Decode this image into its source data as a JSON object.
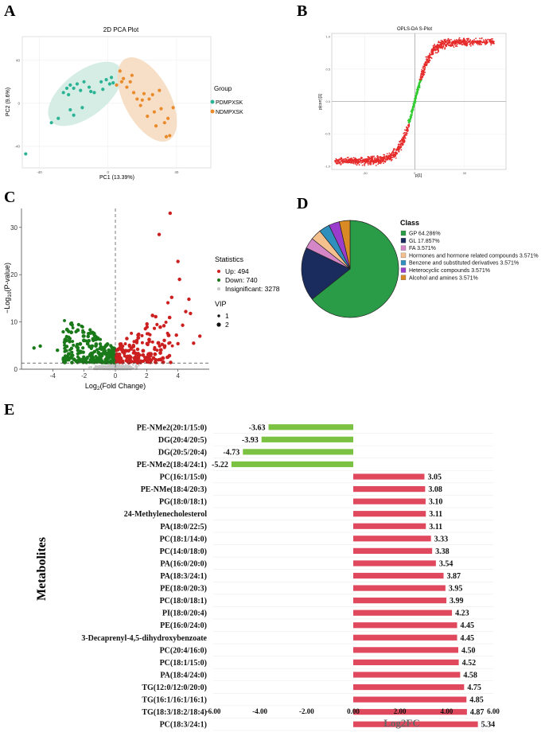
{
  "panel_letters": [
    "A",
    "B",
    "C",
    "D",
    "E"
  ],
  "colors": {
    "pdm": "#2ab394",
    "ndm": "#e98a2b",
    "pdm_ellipse": "#cfeae1",
    "ndm_ellipse": "#f6d9bd",
    "oplsRed": "#e62a2a",
    "oplsGreen": "#33cc33",
    "up": "#cc1f1f",
    "down": "#1a7a1a",
    "insig": "#c8c8c8",
    "barPos": "#e0485d",
    "barNeg": "#7cc242",
    "pie": [
      "#2a9c47",
      "#1a2b5e",
      "#d586c7",
      "#f4c08e",
      "#2f8fbd",
      "#9b3dcc",
      "#d98a25"
    ]
  },
  "chart_data": [
    {
      "id": "A",
      "type": "scatter",
      "title": "2D PCA Plot",
      "xlabel": "PC1 (13.39%)",
      "ylabel": "PC2 (9.6%)",
      "xlim": [
        -50,
        60
      ],
      "ylim": [
        -60,
        62
      ],
      "xticks": [
        -40,
        0,
        40
      ],
      "yticks": [
        -40,
        0,
        40
      ],
      "legend_title": "Group",
      "series": [
        {
          "name": "PDMPXSK",
          "color": "#2ab394",
          "points": [
            [
              -48,
              -47
            ],
            [
              -33,
              -18
            ],
            [
              -29,
              -14
            ],
            [
              -22,
              -6
            ],
            [
              -20,
              -11
            ],
            [
              -15,
              -4
            ],
            [
              -23,
              8
            ],
            [
              -26,
              10
            ],
            [
              -24,
              14
            ],
            [
              -22,
              17
            ],
            [
              -20,
              14
            ],
            [
              -18,
              18
            ],
            [
              -16,
              12
            ],
            [
              -14,
              20
            ],
            [
              -11,
              15
            ],
            [
              -10,
              11
            ],
            [
              -8,
              10
            ],
            [
              -4,
              20
            ],
            [
              -3,
              13
            ],
            [
              -1,
              22
            ],
            [
              1,
              18
            ],
            [
              2,
              24
            ],
            [
              3,
              19
            ]
          ]
        },
        {
          "name": "NDMPXSK",
          "color": "#e98a2b",
          "points": [
            [
              5,
              17
            ],
            [
              7,
              30
            ],
            [
              8,
              20
            ],
            [
              9,
              23
            ],
            [
              11,
              15
            ],
            [
              13,
              20
            ],
            [
              14,
              26
            ],
            [
              15,
              10
            ],
            [
              17,
              4
            ],
            [
              19,
              -2
            ],
            [
              20,
              3
            ],
            [
              21,
              9
            ],
            [
              23,
              -12
            ],
            [
              24,
              4
            ],
            [
              26,
              8
            ],
            [
              27,
              -8
            ],
            [
              28,
              -21
            ],
            [
              30,
              12
            ],
            [
              31,
              -5
            ],
            [
              33,
              -18
            ],
            [
              34,
              -31
            ],
            [
              36,
              -30
            ],
            [
              35,
              -14
            ],
            [
              38,
              -4
            ]
          ]
        }
      ]
    },
    {
      "id": "B",
      "type": "scatter",
      "title": "OPLS-DA S-Plot",
      "xlabel": "p[1]",
      "ylabel": "p(corr)[1]",
      "xlim": [
        -50,
        55
      ],
      "ylim": [
        -1.05,
        1.05
      ],
      "xticks": [
        -30,
        0,
        30
      ],
      "yticks": [
        -1.0,
        -0.5,
        0.0,
        0.5,
        1.0
      ]
    },
    {
      "id": "C",
      "type": "scatter",
      "title": "",
      "xlabel_prefix": "Log",
      "xlabel_sub": "2",
      "xlabel_suffix": "(Fold Change)",
      "ylabel_prefix": "−Log",
      "ylabel_sub": "10",
      "ylabel_suffix": "(P-value)",
      "xlim": [
        -6,
        6
      ],
      "ylim": [
        0,
        34
      ],
      "xticks": [
        -4,
        -2,
        0,
        2,
        4
      ],
      "yticks": [
        0,
        10,
        20,
        30
      ],
      "threshold_y": 1.3,
      "legend_title": "Statistics",
      "series": [
        {
          "name": "Up: 494",
          "color": "#cc1f1f",
          "count": 494
        },
        {
          "name": "Down: 740",
          "color": "#1a7a1a",
          "count": 740
        },
        {
          "name": "Insignificant: 3278",
          "color": "#c8c8c8",
          "count": 3278
        }
      ],
      "size_legend_title": "VIP",
      "size_legend": [
        "1",
        "2"
      ]
    },
    {
      "id": "D",
      "type": "pie",
      "legend_title": "Class",
      "slices": [
        {
          "label": "GP 64.286%",
          "value": 64.286
        },
        {
          "label": "GL 17.857%",
          "value": 17.857
        },
        {
          "label": "FA 3.571%",
          "value": 3.571
        },
        {
          "label": "Hormones and hormone related compounds 3.571%",
          "value": 3.571
        },
        {
          "label": "Benzene and substituted derivatives 3.571%",
          "value": 3.571
        },
        {
          "label": "Heterocyclic compounds 3.571%",
          "value": 3.571
        },
        {
          "label": "Alcohol and amines 3.571%",
          "value": 3.571
        }
      ]
    },
    {
      "id": "E",
      "type": "bar",
      "orientation": "horizontal",
      "xlabel": "Log2FC",
      "ylabel": "Metabolites",
      "xlim": [
        -6,
        6
      ],
      "xticks": [
        "-6.00",
        "-4.00",
        "-2.00",
        "0.00",
        "2.00",
        "4.00",
        "6.00"
      ],
      "categories": [
        "PE-NMe2(20:1/15:0)",
        "DG(20:4/20:5)",
        "DG(20:5/20:4)",
        "PE-NMe2(18:4/24:1)",
        "PC(16:1/15:0)",
        "PE-NMe(18:4/20:3)",
        "PG(18:0/18:1)",
        "24-Methylenecholesterol",
        "PA(18:0/22:5)",
        "PC(18:1/14:0)",
        "PC(14:0/18:0)",
        "PA(16:0/20:0)",
        "PA(18:3/24:1)",
        "PE(18:0/20:3)",
        "PC(18:0/18:1)",
        "PI(18:0/20:4)",
        "PE(16:0/24:0)",
        "3-Decaprenyl-4,5-dihydroxybenzoate",
        "PC(20:4/16:0)",
        "PC(18:1/15:0)",
        "PA(18:4/24:0)",
        "TG(12:0/12:0/20:0)",
        "TG(16:1/16:1/16:1)",
        "TG(18:3/18:2/18:4)",
        "PC(18:3/24:1)"
      ],
      "values": [
        -3.63,
        -3.93,
        -4.73,
        -5.22,
        3.05,
        3.08,
        3.1,
        3.11,
        3.11,
        3.33,
        3.38,
        3.54,
        3.87,
        3.95,
        3.99,
        4.23,
        4.45,
        4.45,
        4.5,
        4.52,
        4.58,
        4.75,
        4.85,
        4.87,
        5.34
      ],
      "value_labels": [
        "-3.63",
        "-3.93",
        "-4.73",
        "-5.22",
        "3.05",
        "3.08",
        "3.10",
        "3.11",
        "3.11",
        "3.33",
        "3.38",
        "3.54",
        "3.87",
        "3.95",
        "3.99",
        "4.23",
        "4.45",
        "4.45",
        "4.50",
        "4.52",
        "4.58",
        "4.75",
        "4.85",
        "4.87",
        "5.34"
      ]
    }
  ]
}
